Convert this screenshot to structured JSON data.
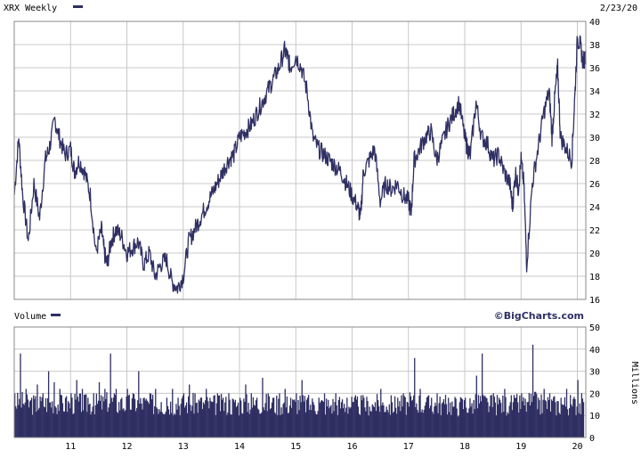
{
  "header": {
    "ticker_label": "XRX Weekly",
    "date": "2/23/20"
  },
  "volume_panel": {
    "label": "Volume",
    "units_label": "Millions"
  },
  "watermark": "©BigCharts.com",
  "colors": {
    "series": "#2f2f63",
    "grid": "#c8c8c8",
    "frame": "#888888",
    "background": "#ffffff"
  },
  "chart_data": [
    {
      "type": "line",
      "title": "XRX Weekly",
      "x_tick_labels": [
        "11",
        "12",
        "13",
        "14",
        "15",
        "16",
        "17",
        "18",
        "19",
        "20"
      ],
      "x_range": [
        2010.0,
        2020.15
      ],
      "ylim": [
        16,
        40
      ],
      "y_ticks": [
        16,
        18,
        20,
        22,
        24,
        26,
        28,
        30,
        32,
        34,
        36,
        38,
        40
      ],
      "grid": true,
      "series": [
        {
          "name": "XRX Weekly",
          "x": [
            2010.0,
            2010.08,
            2010.15,
            2010.25,
            2010.35,
            2010.45,
            2010.55,
            2010.62,
            2010.72,
            2010.8,
            2010.9,
            2011.0,
            2011.07,
            2011.15,
            2011.25,
            2011.35,
            2011.45,
            2011.55,
            2011.6,
            2011.65,
            2011.72,
            2011.8,
            2011.9,
            2012.0,
            2012.1,
            2012.2,
            2012.3,
            2012.4,
            2012.5,
            2012.6,
            2012.7,
            2012.8,
            2012.9,
            2013.0,
            2013.1,
            2013.2,
            2013.3,
            2013.4,
            2013.5,
            2013.6,
            2013.7,
            2013.8,
            2013.9,
            2014.0,
            2014.1,
            2014.2,
            2014.3,
            2014.4,
            2014.5,
            2014.6,
            2014.7,
            2014.8,
            2014.85,
            2014.9,
            2015.0,
            2015.1,
            2015.2,
            2015.3,
            2015.4,
            2015.5,
            2015.6,
            2015.7,
            2015.8,
            2015.9,
            2016.0,
            2016.1,
            2016.15,
            2016.2,
            2016.3,
            2016.4,
            2016.5,
            2016.6,
            2016.7,
            2016.8,
            2016.9,
            2017.0,
            2017.05,
            2017.1,
            2017.2,
            2017.3,
            2017.4,
            2017.5,
            2017.6,
            2017.7,
            2017.8,
            2017.9,
            2018.0,
            2018.05,
            2018.1,
            2018.2,
            2018.3,
            2018.4,
            2018.5,
            2018.6,
            2018.7,
            2018.8,
            2018.85,
            2018.9,
            2018.95,
            2019.0,
            2019.05,
            2019.1,
            2019.2,
            2019.3,
            2019.4,
            2019.5,
            2019.55,
            2019.6,
            2019.65,
            2019.7,
            2019.8,
            2019.9,
            2019.95,
            2020.0,
            2020.05,
            2020.1,
            2020.15
          ],
          "values": [
            25,
            30,
            25,
            21,
            26,
            23,
            28,
            29,
            31.5,
            30,
            28.5,
            29,
            27,
            28,
            27,
            25,
            20,
            22,
            20,
            19,
            21,
            22,
            21.5,
            20,
            20.5,
            21,
            19,
            20,
            18,
            19,
            19.5,
            17.5,
            17,
            18,
            21,
            22,
            23,
            24,
            25,
            26,
            27,
            28,
            28.5,
            30,
            30.5,
            31,
            32,
            33,
            34,
            35,
            36,
            37.5,
            37,
            36,
            37,
            36,
            34,
            30,
            29,
            28.5,
            28,
            27.5,
            27,
            26,
            25,
            24,
            23,
            27,
            28,
            29,
            24.5,
            26,
            25.5,
            26,
            25,
            24.5,
            23.5,
            28,
            29,
            30,
            30.5,
            28,
            29.5,
            31,
            32,
            33,
            30,
            29,
            28.5,
            33,
            30,
            29.5,
            28,
            28.5,
            27,
            26,
            24,
            27,
            25.5,
            28,
            26,
            19,
            26,
            29,
            32,
            34,
            30,
            33.5,
            36,
            30,
            29,
            28,
            33,
            38.5,
            38,
            36.5,
            37
          ]
        }
      ]
    },
    {
      "type": "bar",
      "title": "Volume",
      "x_tick_labels": [
        "11",
        "12",
        "13",
        "14",
        "15",
        "16",
        "17",
        "18",
        "19",
        "20"
      ],
      "x_range": [
        2010.0,
        2020.15
      ],
      "ylabel": "Millions",
      "ylim": [
        0,
        50
      ],
      "y_ticks": [
        0,
        10,
        20,
        30,
        40,
        50
      ],
      "grid": true,
      "series": [
        {
          "name": "Volume",
          "x": [
            2010.0,
            2010.1,
            2010.2,
            2010.3,
            2010.4,
            2010.5,
            2010.6,
            2010.7,
            2010.8,
            2010.9,
            2011.0,
            2011.1,
            2011.2,
            2011.3,
            2011.4,
            2011.5,
            2011.6,
            2011.7,
            2011.8,
            2011.9,
            2012.0,
            2012.1,
            2012.2,
            2012.3,
            2012.4,
            2012.5,
            2012.6,
            2012.7,
            2012.8,
            2012.9,
            2013.0,
            2013.1,
            2013.2,
            2013.3,
            2013.4,
            2013.5,
            2013.6,
            2013.7,
            2013.8,
            2013.9,
            2014.0,
            2014.1,
            2014.2,
            2014.3,
            2014.4,
            2014.5,
            2014.6,
            2014.7,
            2014.8,
            2014.9,
            2015.0,
            2015.1,
            2015.2,
            2015.3,
            2015.4,
            2015.5,
            2015.6,
            2015.7,
            2015.8,
            2015.9,
            2016.0,
            2016.1,
            2016.2,
            2016.3,
            2016.4,
            2016.5,
            2016.6,
            2016.7,
            2016.8,
            2016.9,
            2017.0,
            2017.1,
            2017.2,
            2017.3,
            2017.4,
            2017.5,
            2017.6,
            2017.7,
            2017.8,
            2017.9,
            2018.0,
            2018.1,
            2018.2,
            2018.3,
            2018.4,
            2018.5,
            2018.6,
            2018.7,
            2018.8,
            2018.9,
            2019.0,
            2019.1,
            2019.2,
            2019.3,
            2019.4,
            2019.5,
            2019.6,
            2019.7,
            2019.8,
            2019.9,
            2020.0,
            2020.1
          ],
          "values": [
            20,
            38,
            22,
            18,
            24,
            20,
            30,
            25,
            22,
            18,
            20,
            26,
            22,
            18,
            20,
            25,
            22,
            38,
            22,
            18,
            22,
            20,
            30,
            18,
            20,
            22,
            16,
            18,
            22,
            18,
            20,
            24,
            20,
            18,
            22,
            16,
            20,
            18,
            20,
            16,
            18,
            24,
            20,
            18,
            27,
            20,
            18,
            20,
            22,
            18,
            20,
            26,
            18,
            16,
            18,
            20,
            14,
            20,
            16,
            18,
            16,
            14,
            18,
            14,
            16,
            22,
            14,
            16,
            18,
            20,
            14,
            36,
            22,
            16,
            18,
            20,
            16,
            18,
            14,
            16,
            18,
            14,
            28,
            38,
            16,
            20,
            18,
            22,
            16,
            18,
            20,
            16,
            42,
            18,
            22,
            20,
            16,
            18,
            22,
            14,
            26,
            16
          ]
        }
      ]
    }
  ]
}
